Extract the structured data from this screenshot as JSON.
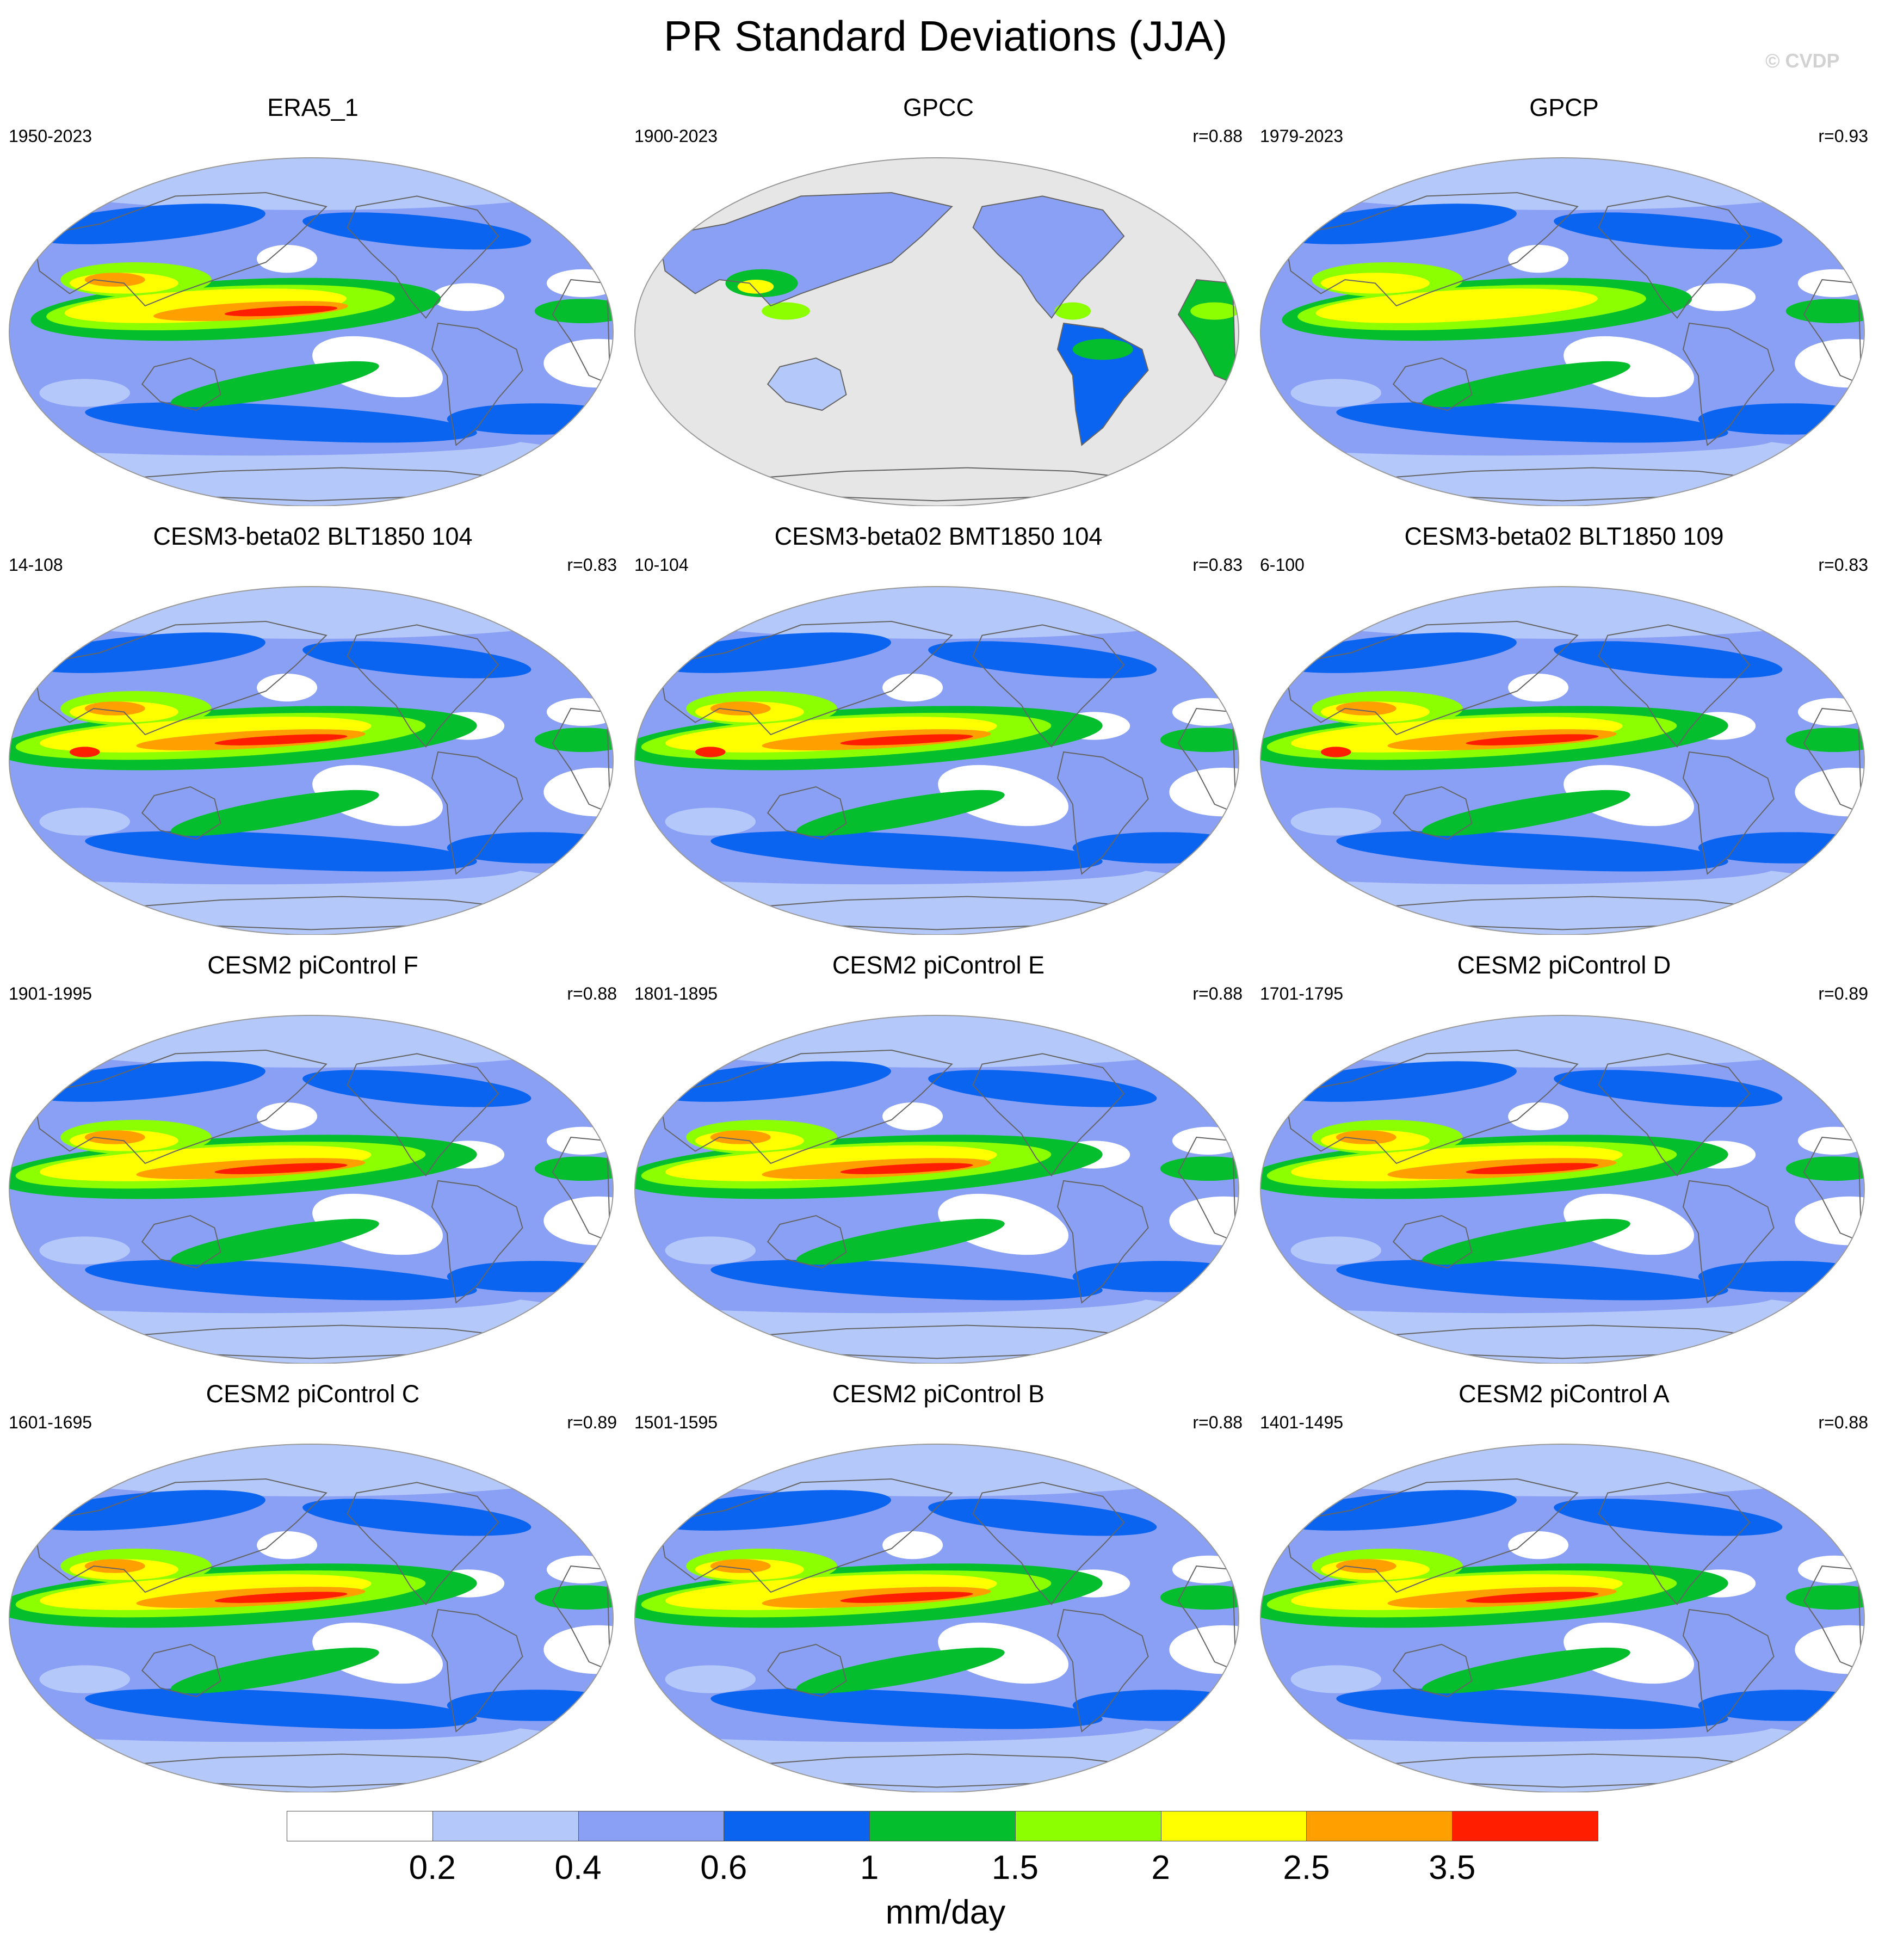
{
  "figure": {
    "title": "PR Standard Deviations (JJA)",
    "credit": "© CVDP"
  },
  "panels": [
    {
      "title": "ERA5_1",
      "years": "1950-2023",
      "corr": "",
      "style": "obs"
    },
    {
      "title": "GPCC",
      "years": "1900-2023",
      "corr": "r=0.88",
      "style": "land"
    },
    {
      "title": "GPCP",
      "years": "1979-2023",
      "corr": "r=0.93",
      "style": "obs2"
    },
    {
      "title": "CESM3-beta02 BLT1850 104",
      "years": "14-108",
      "corr": "r=0.83",
      "style": "model"
    },
    {
      "title": "CESM3-beta02 BMT1850 104",
      "years": "10-104",
      "corr": "r=0.83",
      "style": "model"
    },
    {
      "title": "CESM3-beta02 BLT1850 109",
      "years": "6-100",
      "corr": "r=0.83",
      "style": "model"
    },
    {
      "title": "CESM2 piControl F",
      "years": "1901-1995",
      "corr": "r=0.88",
      "style": "cesm2"
    },
    {
      "title": "CESM2 piControl E",
      "years": "1801-1895",
      "corr": "r=0.88",
      "style": "cesm2"
    },
    {
      "title": "CESM2 piControl D",
      "years": "1701-1795",
      "corr": "r=0.89",
      "style": "cesm2"
    },
    {
      "title": "CESM2 piControl C",
      "years": "1601-1695",
      "corr": "r=0.89",
      "style": "cesm2"
    },
    {
      "title": "CESM2 piControl B",
      "years": "1501-1595",
      "corr": "r=0.88",
      "style": "cesm2"
    },
    {
      "title": "CESM2 piControl A",
      "years": "1401-1495",
      "corr": "r=0.88",
      "style": "cesm2"
    }
  ],
  "colorbar": {
    "units": "mm/day",
    "levels": [
      "0.2",
      "0.4",
      "0.6",
      "1",
      "1.5",
      "2",
      "2.5",
      "3.5"
    ],
    "colors": [
      "#ffffff",
      "#b4c8fa",
      "#8aa0f5",
      "#0a64f0",
      "#05be2d",
      "#8cff00",
      "#ffff00",
      "#ffa000",
      "#ff1e00"
    ]
  },
  "colors": {
    "land_mask": "#e6e6e6",
    "coastline": "#646464",
    "map_border": "#9a9a9a"
  }
}
